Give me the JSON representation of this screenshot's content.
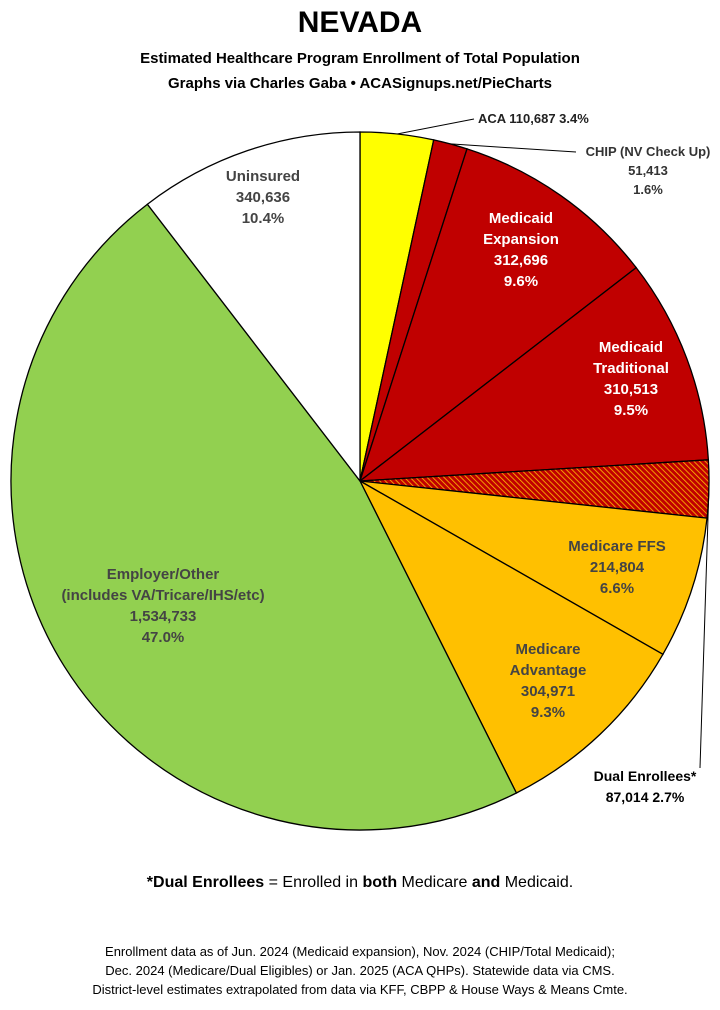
{
  "title": "NEVADA",
  "subtitle_line1": "Estimated Healthcare Program Enrollment of Total Population",
  "subtitle_line2": "Graphs via Charles Gaba  •  ACASignups.net/PieCharts",
  "chart_data": {
    "type": "pie",
    "title": "NEVADA",
    "start": "12 o'clock",
    "direction": "clockwise",
    "slices": [
      {
        "name": "ACA",
        "value": 110687,
        "percent": "3.4%",
        "color": "#ffff00",
        "label_lines": [
          "ACA 110,687 3.4%"
        ]
      },
      {
        "name": "CHIP (NV Check Up)",
        "value": 51413,
        "percent": "1.6%",
        "color": "#c00000",
        "label_lines": [
          "CHIP (NV Check Up)",
          "51,413",
          "1.6%"
        ]
      },
      {
        "name": "Medicaid Expansion",
        "value": 312696,
        "percent": "9.6%",
        "color": "#c00000",
        "label_lines": [
          "Medicaid",
          "Expansion",
          "312,696",
          "9.6%"
        ]
      },
      {
        "name": "Medicaid Traditional",
        "value": 310513,
        "percent": "9.5%",
        "color": "#c00000",
        "label_lines": [
          "Medicaid",
          "Traditional",
          "310,513",
          "9.5%"
        ]
      },
      {
        "name": "Dual Enrollees*",
        "value": 87014,
        "percent": "2.7%",
        "color": "#c00000",
        "hatched": true,
        "label_lines": [
          "Dual Enrollees*",
          "87,014 2.7%"
        ]
      },
      {
        "name": "Medicare FFS",
        "value": 214804,
        "percent": "6.6%",
        "color": "#ffc000",
        "label_lines": [
          "Medicare FFS",
          "214,804",
          "6.6%"
        ]
      },
      {
        "name": "Medicare Advantage",
        "value": 304971,
        "percent": "9.3%",
        "color": "#ffc000",
        "label_lines": [
          "Medicare",
          "Advantage",
          "304,971",
          "9.3%"
        ]
      },
      {
        "name": "Employer/Other",
        "value": 1534733,
        "percent": "47.0%",
        "color": "#92d050",
        "label_lines": [
          "Employer/Other",
          "(includes VA/Tricare/IHS/etc)",
          "1,534,733",
          "47.0%"
        ]
      },
      {
        "name": "Uninsured",
        "value": 340636,
        "percent": "10.4%",
        "color": "#ffffff",
        "label_lines": [
          "Uninsured",
          "340,636",
          "10.4%"
        ]
      }
    ]
  },
  "note": {
    "prefix": "*Dual Enrollees",
    "mid1": " = Enrolled in ",
    "both": "both",
    "mid2": " Medicare ",
    "and": "and",
    "suffix": " Medicaid."
  },
  "footer": {
    "line1": "Enrollment data as of Jun. 2024 (Medicaid expansion), Nov. 2024 (CHIP/Total Medicaid);",
    "line2": "Dec. 2024 (Medicare/Dual Eligibles) or Jan. 2025 (ACA QHPs). Statewide data via CMS.",
    "line3": "District-level estimates extrapolated from data via KFF, CBPP & House Ways & Means Cmte."
  }
}
